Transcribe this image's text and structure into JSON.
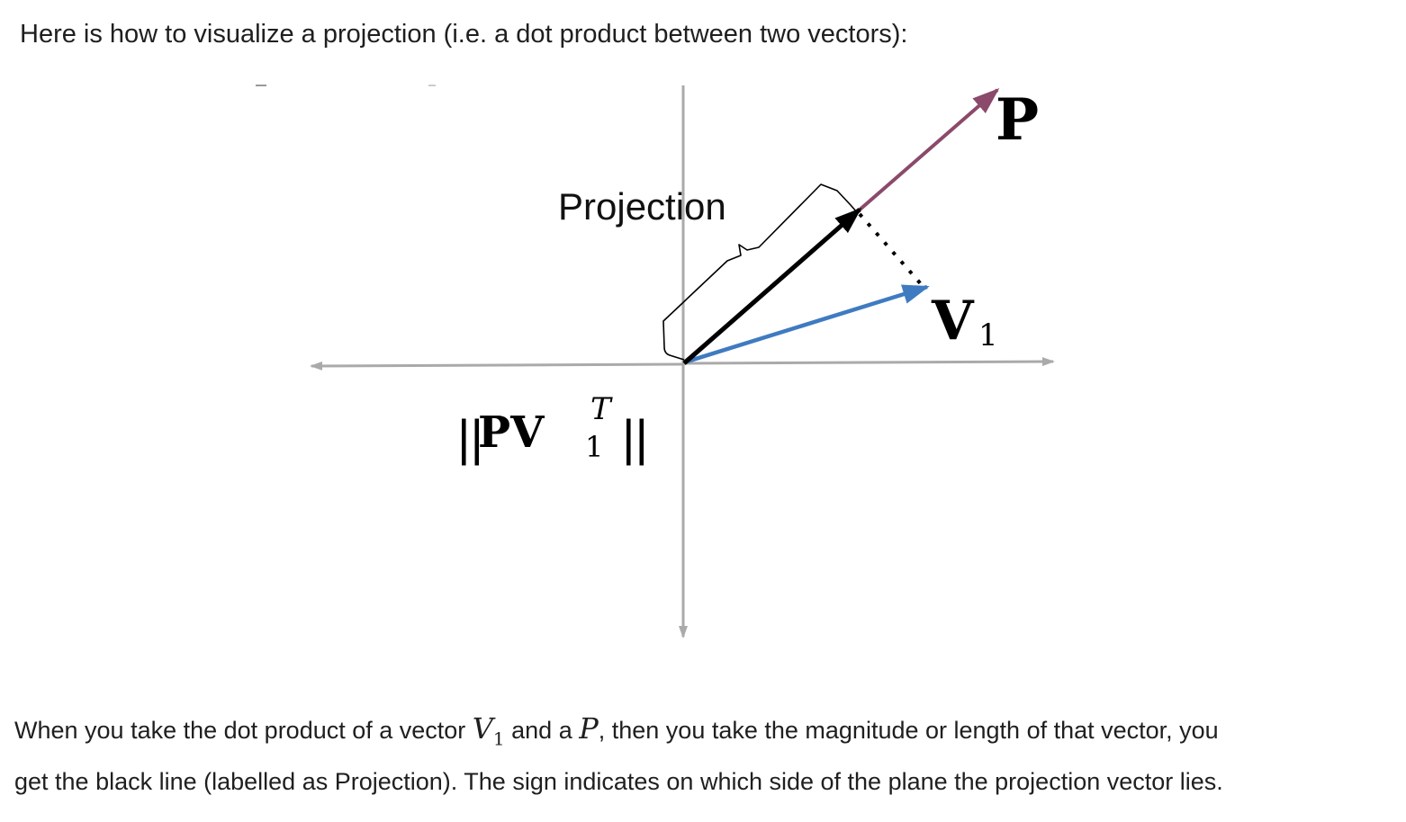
{
  "intro_text": "Here is how to visualize a projection (i.e. a dot product between two vectors):",
  "figure": {
    "projection_label": "Projection",
    "p_label": "P",
    "v_label": "V",
    "v_subscript": "1",
    "formula_left": "||",
    "formula_pv": "PV",
    "formula_sup": "T",
    "formula_sub": "1",
    "formula_right": "||",
    "colors": {
      "axis": "#aaaaaa",
      "vector_p": "#8b4a6b",
      "vector_v1": "#3f7bc0",
      "projection": "#000000"
    }
  },
  "caption": {
    "part1": "When you take the dot product of a vector ",
    "v_symbol": "V",
    "v_sub": "1",
    "part2": " and a ",
    "p_symbol": "P",
    "part3": ", then you take the magnitude or length of that vector,  you",
    "line2": "get the black line (labelled as  Projection). The sign indicates on which side of the plane the projection vector lies."
  }
}
